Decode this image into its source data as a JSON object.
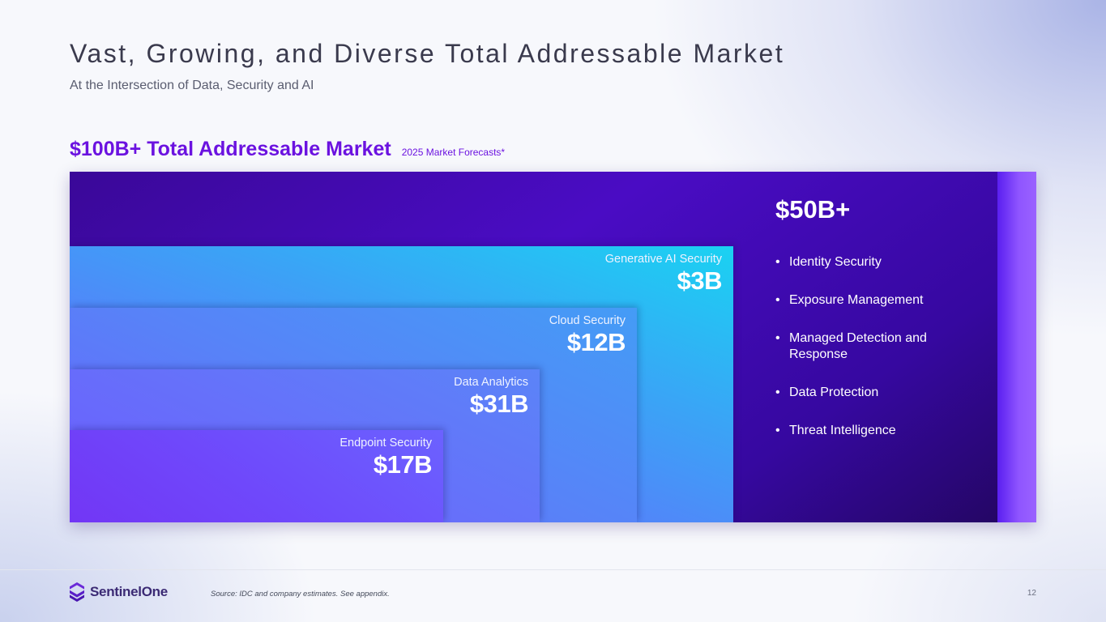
{
  "slide": {
    "title": "Vast, Growing, and Diverse Total Addressable Market",
    "subtitle": "At the Intersection of Data, Security and AI",
    "tam_heading": "$100B+ Total Addressable Market",
    "tam_note": "2025 Market Forecasts*",
    "page_number": "12"
  },
  "segments": [
    {
      "name": "Generative AI Security",
      "value": "$3B"
    },
    {
      "name": "Cloud Security",
      "value": "$12B"
    },
    {
      "name": "Data Analytics",
      "value": "$31B"
    },
    {
      "name": "Endpoint Security",
      "value": "$17B"
    }
  ],
  "other_markets": {
    "value": "$50B+",
    "items": [
      "Identity Security",
      "Exposure Management",
      "Managed Detection and Response",
      "Data Protection",
      "Threat Intelligence"
    ]
  },
  "footer": {
    "brand": "SentinelOne",
    "source": "Source: IDC and company estimates. See appendix."
  },
  "colors": {
    "accent": "#6b12e0",
    "panel": "#4a0cc4",
    "genai": "#1ad2f2",
    "endpoint": "#7236f5"
  }
}
